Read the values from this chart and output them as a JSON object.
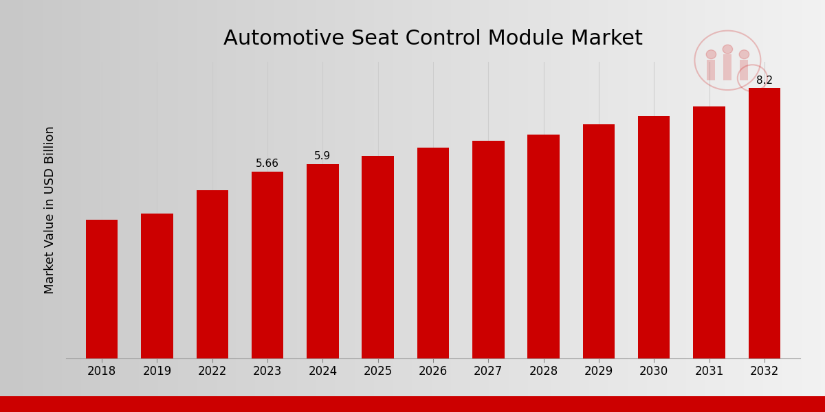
{
  "title": "Automotive Seat Control Module Market",
  "ylabel": "Market Value in USD Billion",
  "categories": [
    "2018",
    "2019",
    "2022",
    "2023",
    "2024",
    "2025",
    "2026",
    "2027",
    "2028",
    "2029",
    "2030",
    "2031",
    "2032"
  ],
  "values": [
    4.2,
    4.4,
    5.1,
    5.66,
    5.9,
    6.15,
    6.4,
    6.6,
    6.8,
    7.1,
    7.35,
    7.65,
    8.2
  ],
  "bar_color": "#CC0000",
  "labeled_bars": {
    "2023": "5.66",
    "2024": "5.9",
    "2032": "8.2"
  },
  "grid_color": "#cccccc",
  "ylim": [
    0,
    9.0
  ],
  "title_fontsize": 22,
  "ylabel_fontsize": 13,
  "tick_fontsize": 12,
  "bar_label_fontsize": 11,
  "bg_color_left": "#d0d0d0",
  "bg_color_right": "#f0f0f0",
  "footer_color": "#CC0000",
  "bar_width": 0.58
}
